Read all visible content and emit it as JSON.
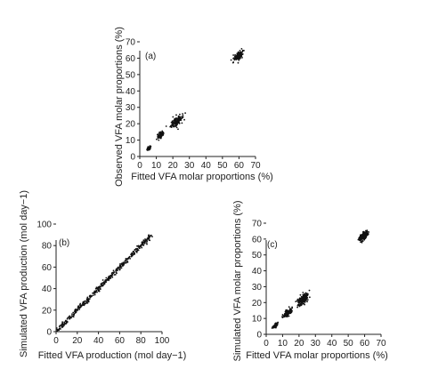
{
  "chart_data": [
    {
      "type": "scatter",
      "panel_label": "(a)",
      "xlabel": "Fitted VFA molar proportions (%)",
      "ylabel": "Observed VFA molar proportions (%)",
      "xlim": [
        0,
        70
      ],
      "ylim": [
        0,
        70
      ],
      "xticks": [
        "0",
        "10",
        "20",
        "30",
        "40",
        "50",
        "60",
        "70"
      ],
      "yticks": [
        "0",
        "10",
        "20",
        "30",
        "40",
        "50",
        "60",
        "70"
      ],
      "clusters": [
        {
          "x": 5.5,
          "y": 5,
          "spread": 0.8,
          "n": 40
        },
        {
          "x": 12.5,
          "y": 13,
          "spread": 1.3,
          "n": 90
        },
        {
          "x": 22.5,
          "y": 21.5,
          "spread": 2.3,
          "n": 130
        },
        {
          "x": 59.5,
          "y": 61,
          "spread": 1.8,
          "n": 130
        }
      ]
    },
    {
      "type": "scatter",
      "panel_label": "(b)",
      "xlabel": "Fitted VFA production (mol day−1)",
      "ylabel": "Simulated VFA production (mol day−1)",
      "xlim": [
        0,
        100
      ],
      "ylim": [
        0,
        100
      ],
      "xticks": [
        "0",
        "20",
        "40",
        "60",
        "80",
        "100"
      ],
      "yticks": [
        "0",
        "20",
        "40",
        "60",
        "80",
        "100"
      ],
      "line_points": {
        "x0": 1,
        "x1": 90,
        "n": 420,
        "spread": 1.2
      }
    },
    {
      "type": "scatter",
      "panel_label": "(c)",
      "xlabel": "Fitted VFA molar proportions (%)",
      "ylabel": "Simulated VFA molar proportions (%)",
      "xlim": [
        0,
        70
      ],
      "ylim": [
        0,
        70
      ],
      "xticks": [
        "0",
        "10",
        "20",
        "30",
        "40",
        "50",
        "60",
        "70"
      ],
      "yticks": [
        "0",
        "10",
        "20",
        "30",
        "40",
        "50",
        "60",
        "70"
      ],
      "clusters": [
        {
          "x": 5.5,
          "y": 5.5,
          "spread": 1.0,
          "n": 70
        },
        {
          "x": 13,
          "y": 13.5,
          "spread": 1.5,
          "n": 130
        },
        {
          "x": 22.5,
          "y": 22,
          "spread": 2.0,
          "n": 200
        },
        {
          "x": 59.5,
          "y": 62,
          "spread": 1.6,
          "n": 230
        }
      ]
    }
  ]
}
